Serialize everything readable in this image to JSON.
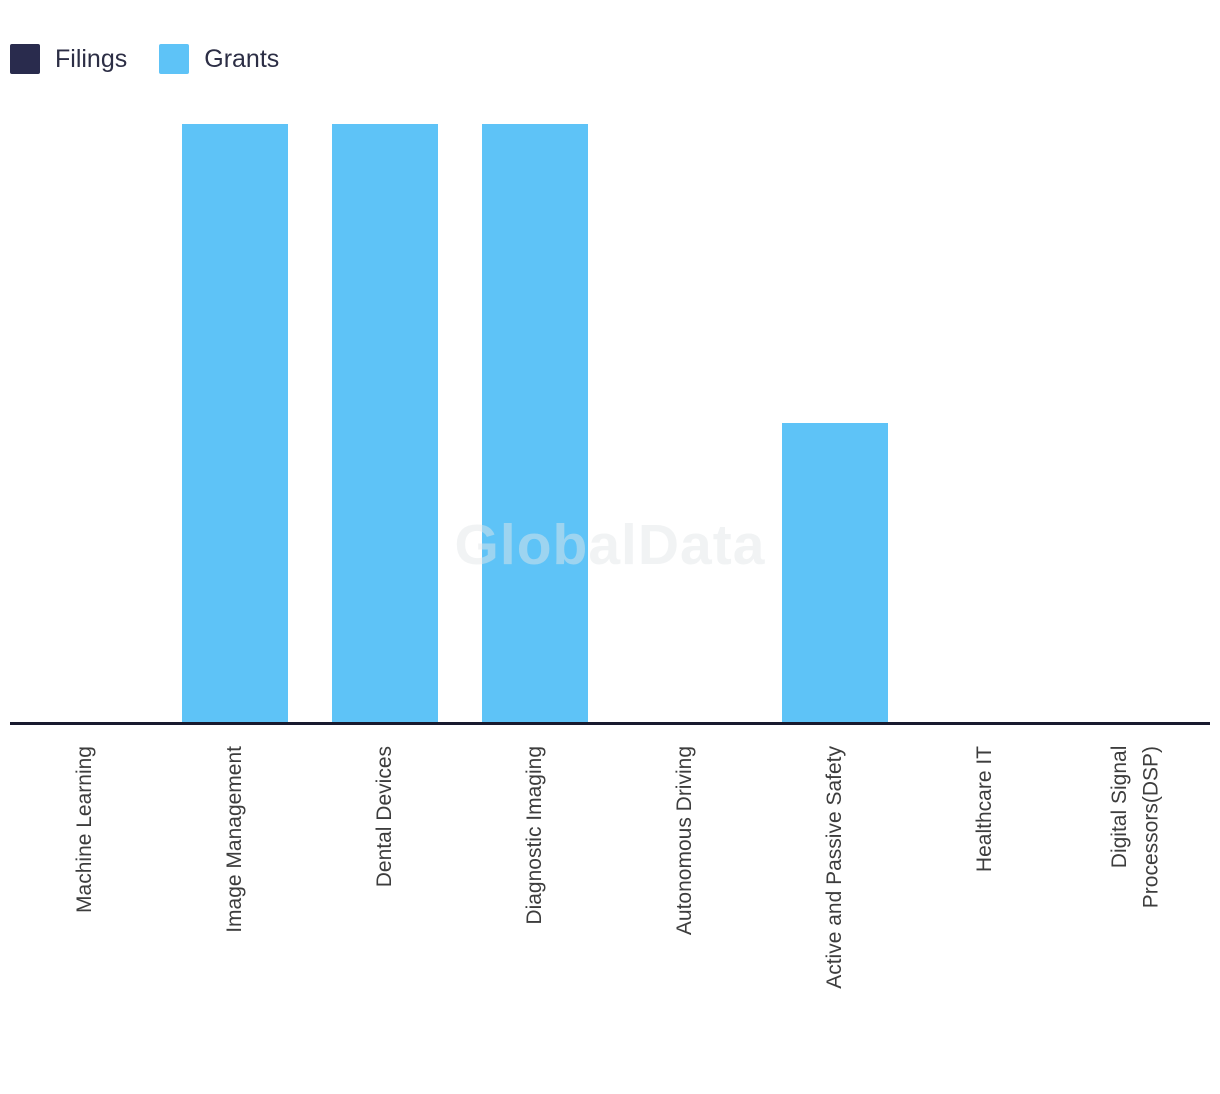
{
  "watermark": "GlobalData",
  "legend": {
    "position": "top-left"
  },
  "chart_data": {
    "type": "bar",
    "stacked": true,
    "title": "",
    "xlabel": "",
    "ylabel": "",
    "categories": [
      "Machine Learning",
      "Image Management",
      "Dental Devices",
      "Diagnostic Imaging",
      "Autonomous Driving",
      "Active and Passive Safety",
      "Healthcare IT",
      "Digital Signal\nProcessors(DSP)"
    ],
    "series": [
      {
        "name": "Filings",
        "color": "#292b4d",
        "values": [
          0,
          0,
          0,
          0,
          0,
          0,
          0,
          0
        ]
      },
      {
        "name": "Grants",
        "color": "#5ec3f7",
        "values": [
          0,
          2,
          2,
          2,
          0,
          1,
          0,
          0
        ]
      }
    ],
    "ylim": [
      0,
      2
    ],
    "y_axis_visible": false,
    "grid": false,
    "legend_position": "top-left",
    "axis_line_color": "#181a2e",
    "label_color": "#3d3d3d"
  }
}
